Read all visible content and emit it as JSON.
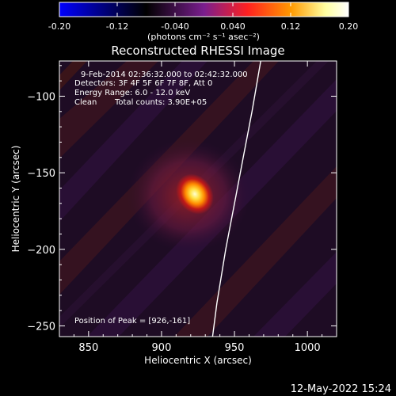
{
  "colorbar": {
    "tick_labels": [
      "-0.20",
      "-0.12",
      "-0.040",
      "0.040",
      "0.12",
      "0.20"
    ],
    "tick_values": [
      -0.2,
      -0.12,
      -0.04,
      0.04,
      0.12,
      0.2
    ],
    "range": [
      -0.2,
      0.2
    ],
    "units_label": "(photons cm⁻² s⁻¹ asec⁻²)",
    "colormap": [
      "#0000ff",
      "#000000",
      "#7a1e8e",
      "#ff2020",
      "#ff9900",
      "#ffffa0",
      "#ffffff"
    ]
  },
  "chart_data": {
    "type": "heatmap",
    "title": "Reconstructed RHESSI Image",
    "xlabel": "Heliocentric X (arcsec)",
    "ylabel": "Heliocentric Y (arcsec)",
    "xlim": [
      830,
      1020
    ],
    "ylim": [
      -257,
      -77
    ],
    "x_ticks": [
      850,
      900,
      950,
      1000
    ],
    "x_tick_labels": [
      "850",
      "900",
      "950",
      "1000"
    ],
    "y_ticks": [
      -100,
      -150,
      -200,
      -250
    ],
    "y_tick_labels": [
      "−100",
      "−150",
      "−200",
      "−250"
    ],
    "annotations": [
      "9-Feb-2014 02:36:32.000 to 02:42:32.000",
      "Detectors: 3F 4F 5F 6F 7F 8F, Att 0",
      "Energy Range: 6.0 - 12.0 keV",
      "Clean",
      "Total counts: 3.90E+05",
      "Position of Peak = [926,-161]"
    ],
    "peak": {
      "x": 926,
      "y": -161
    },
    "limb": [
      [
        968,
        -77
      ],
      [
        962,
        -110
      ],
      [
        956,
        -140
      ],
      [
        950,
        -170
      ],
      [
        944,
        -200
      ],
      [
        938,
        -235
      ],
      [
        935,
        -257
      ]
    ]
  },
  "footer": {
    "timestamp": "12-May-2022 15:24"
  }
}
